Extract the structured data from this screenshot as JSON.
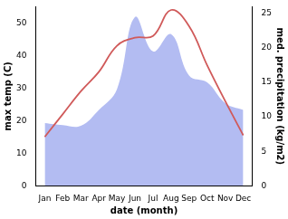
{
  "chart_data": {
    "type": "line",
    "x_label": "date (month)",
    "y_label": "max temp (C)",
    "y2_label": "med. precipitation (kg/m2)",
    "categories": [
      "Jan",
      "Feb",
      "Mar",
      "Apr",
      "May",
      "Jun",
      "Jul",
      "Aug",
      "Sep",
      "Oct",
      "Nov",
      "Dec"
    ],
    "series": [
      {
        "name": "med. precipitation",
        "type": "area",
        "axis": "y2",
        "color": "#b3bcf2",
        "values": [
          9.1,
          8.8,
          8.7,
          11,
          14,
          24.5,
          19.5,
          22,
          16,
          15,
          12,
          11
        ]
      },
      {
        "name": "max temp",
        "type": "line",
        "axis": "y",
        "color": "#d05a5a",
        "values": [
          15,
          22,
          29,
          35,
          43,
          45.5,
          46,
          54,
          49,
          37,
          26,
          15.5
        ]
      }
    ],
    "ylim": [
      0,
      55
    ],
    "yticks": [
      0,
      10,
      20,
      30,
      40,
      50
    ],
    "y2lim": [
      0,
      26
    ],
    "y2ticks": [
      0,
      5,
      10,
      15,
      20,
      25
    ],
    "grid": false
  }
}
